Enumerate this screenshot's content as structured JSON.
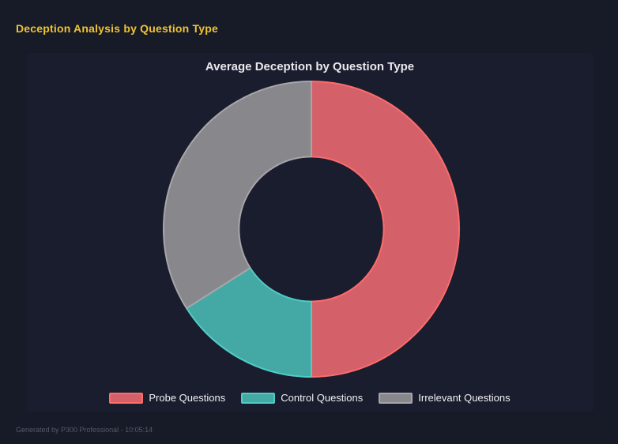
{
  "page": {
    "title": "Deception Analysis by Question Type",
    "footer": "Generated by P300 Professional - 10:05:14"
  },
  "theme": {
    "page_bg": "#171a27",
    "panel_bg": "#1a1d2e",
    "page_title_color": "#efc433",
    "chart_text_color": "#e9e9ec",
    "footer_color": "#565b6b"
  },
  "chart_data": {
    "type": "pie",
    "subtype": "doughnut",
    "title": "Average Deception by Question Type",
    "cutout_percent": 49,
    "start_angle": "top",
    "direction": "clockwise",
    "legend_position": "bottom",
    "segments": [
      {
        "label": "Probe Questions",
        "percent": 50,
        "fill": "#d4616a",
        "border": "#ff6b6b"
      },
      {
        "label": "Control Questions",
        "percent": 16,
        "fill": "#44a9a4",
        "border": "#4ecdc4"
      },
      {
        "label": "Irrelevant Questions",
        "percent": 34,
        "fill": "#88888c",
        "border": "#a6a6aa"
      }
    ]
  }
}
